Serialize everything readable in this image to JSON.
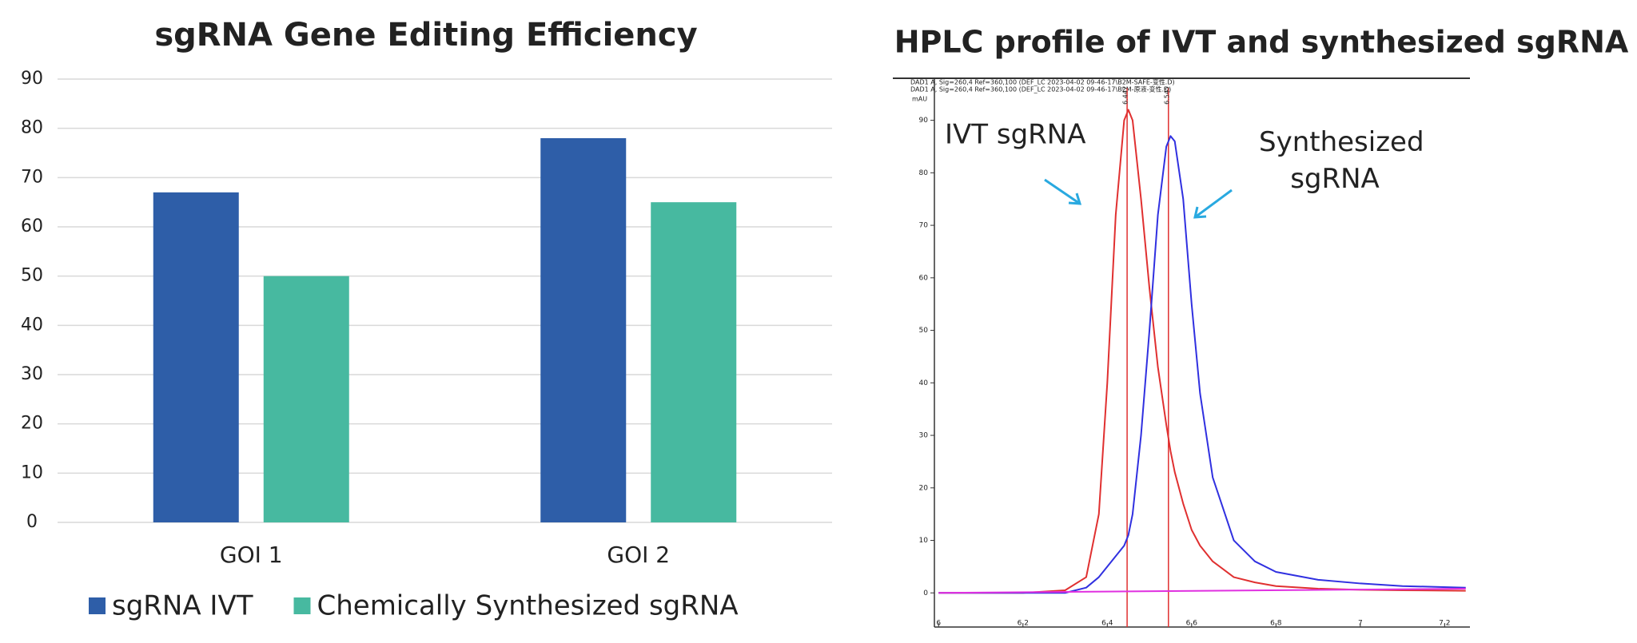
{
  "chart_data": [
    {
      "type": "bar",
      "title": "sgRNA Gene Editing Efficiency",
      "categories": [
        "GOI 1",
        "GOI 2"
      ],
      "series": [
        {
          "name": "sgRNA IVT",
          "color": "#2e5ea8",
          "values": [
            67,
            78
          ]
        },
        {
          "name": "Chemically Synthesized sgRNA",
          "color": "#47b9a0",
          "values": [
            50,
            65
          ]
        }
      ],
      "ylim": [
        0,
        90
      ],
      "yticks": [
        0,
        10,
        20,
        30,
        40,
        50,
        60,
        70,
        80,
        90
      ],
      "grid": true,
      "legend": "bottom"
    },
    {
      "type": "line",
      "title": "HPLC profile of IVT and synthesized sgRNA",
      "header": [
        {
          "text": "DAD1 A, Sig=260,4 Ref=360,100 (DEF_LC 2023-04-02 09-46-17\\B2M-SAFE-变性.D)",
          "color": "#3030e0"
        },
        {
          "text": "DAD1 A, Sig=260,4 Ref=360,100 (DEF_LC 2023-04-02 09-46-17\\B2M-原液-变性.D)",
          "color": "#e03030"
        }
      ],
      "y_label": "mAU",
      "annotations": [
        "IVT sgRNA",
        "Synthesized sgRNA"
      ],
      "x": [
        6.0,
        6.1,
        6.2,
        6.3,
        6.35,
        6.38,
        6.4,
        6.42,
        6.44,
        6.45,
        6.46,
        6.48,
        6.5,
        6.52,
        6.54,
        6.55,
        6.56,
        6.58,
        6.6,
        6.62,
        6.65,
        6.7,
        6.75,
        6.8,
        6.9,
        7.0,
        7.1,
        7.25
      ],
      "series": [
        {
          "color": "#e03030",
          "values": [
            0,
            0,
            0,
            0.5,
            3,
            15,
            40,
            72,
            90,
            92,
            90,
            75,
            58,
            43,
            32,
            27,
            23,
            17,
            12,
            9,
            6,
            3,
            2,
            1.3,
            0.8,
            0.6,
            0.5,
            0.4
          ]
        },
        {
          "color": "#3030e0",
          "values": [
            0,
            0,
            0,
            0,
            1,
            3,
            5,
            7,
            9,
            11,
            15,
            30,
            50,
            72,
            85,
            87,
            86,
            75,
            55,
            38,
            22,
            10,
            6,
            4,
            2.5,
            1.8,
            1.3,
            1
          ]
        },
        {
          "color": "#e030e0",
          "x": [
            6.0,
            7.25
          ],
          "values": [
            0,
            0.8
          ]
        }
      ],
      "peaks": [
        {
          "x": 6.447,
          "color": "#e03030"
        },
        {
          "x": 6.545,
          "color": "#e03030"
        }
      ],
      "xlim": [
        5.99,
        7.26
      ],
      "xticks": [
        6,
        6.2,
        6.4,
        6.6,
        6.8,
        7,
        7.2
      ],
      "ylim": [
        -6.5,
        98
      ],
      "yticks": [
        0,
        10,
        20,
        30,
        40,
        50,
        60,
        70,
        80,
        90
      ],
      "grid": false
    }
  ]
}
